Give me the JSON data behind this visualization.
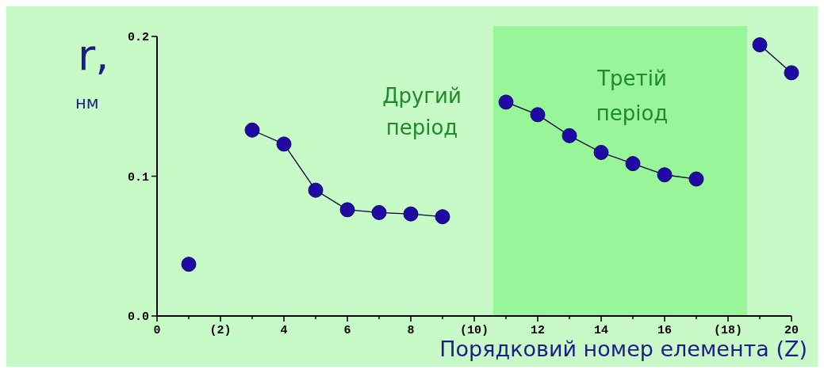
{
  "chart_data": {
    "type": "line",
    "xlabel": "Порядковий номер елемента  (Z)",
    "ylabel": "r,\nнм",
    "x": [
      1,
      2,
      3,
      4,
      5,
      6,
      7,
      8,
      9,
      10,
      11,
      12,
      13,
      14,
      15,
      16,
      17,
      18,
      19,
      20
    ],
    "series": [
      {
        "color": "#1f0aa6",
        "values": [
          0.037,
          null,
          0.133,
          0.123,
          0.09,
          0.076,
          0.074,
          0.073,
          0.071,
          null,
          0.153,
          0.144,
          0.129,
          0.117,
          0.109,
          0.101,
          0.098,
          null,
          0.194,
          0.174
        ]
      }
    ],
    "marker": "circle",
    "line_style": "solid",
    "xlim": [
      0,
      20
    ],
    "xticks": [
      0,
      {
        "value": 1,
        "label": null
      },
      {
        "value": 2,
        "label": "(2)"
      },
      {
        "value": 3,
        "label": null
      },
      4,
      {
        "value": 5,
        "label": null
      },
      6,
      {
        "value": 7,
        "label": null
      },
      8,
      {
        "value": 9,
        "label": null
      },
      {
        "value": 10,
        "label": "(10)"
      },
      {
        "value": 11,
        "label": null
      },
      12,
      {
        "value": 13,
        "label": null
      },
      14,
      {
        "value": 15,
        "label": null
      },
      16,
      {
        "value": 17,
        "label": null
      },
      {
        "value": 18,
        "label": "(18)"
      },
      {
        "value": 19,
        "label": null
      },
      20
    ],
    "ylim": [
      0,
      0.2
    ],
    "yticks": [
      {
        "value": 0,
        "label": "0.0"
      },
      0.1,
      0.2
    ],
    "bands": [
      {
        "axis": "x",
        "from": 10.6,
        "to": 18.6,
        "label": "Третій\nперіод",
        "color": "#99f599"
      }
    ],
    "annotations": [
      "Другий\nперіод"
    ],
    "grid": false
  }
}
